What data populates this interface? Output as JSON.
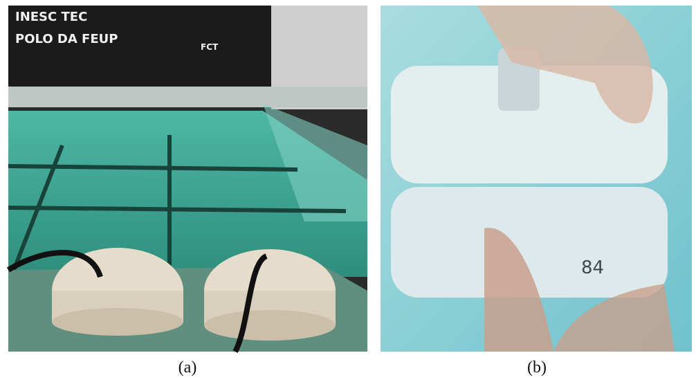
{
  "figure": {
    "panels": [
      {
        "caption": "(a)",
        "scene_text": [
          "INESC TEC",
          "POLO DA FEUP",
          "FCT"
        ]
      },
      {
        "caption": "(b)",
        "scene_text": [
          "84"
        ]
      }
    ]
  }
}
